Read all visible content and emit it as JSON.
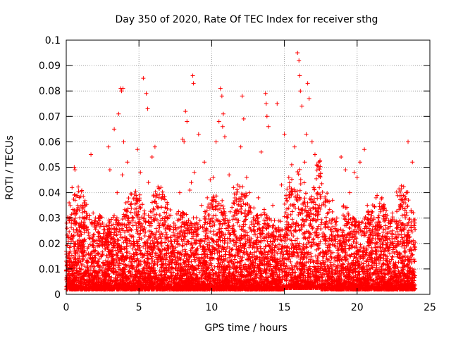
{
  "chart_data": {
    "type": "scatter",
    "title": "Day 350 of 2020, Rate Of TEC Index for receiver sthg",
    "xlabel": "GPS time / hours",
    "ylabel": "ROTI / TECUs",
    "xlim": [
      0,
      25
    ],
    "ylim": [
      0,
      0.1
    ],
    "x_ticks": [
      "0",
      "5",
      "10",
      "15",
      "20",
      "25"
    ],
    "y_ticks": [
      "0",
      "0.01",
      "0.02",
      "0.03",
      "0.04",
      "0.05",
      "0.06",
      "0.07",
      "0.08",
      "0.09",
      "0.1"
    ],
    "x_tick_values": [
      0,
      5,
      10,
      15,
      20,
      25
    ],
    "y_tick_values": [
      0,
      0.01,
      0.02,
      0.03,
      0.04,
      0.05,
      0.06,
      0.07,
      0.08,
      0.09,
      0.1
    ],
    "grid": true,
    "marker": "plus",
    "marker_color": "#ff0000",
    "series": [
      {
        "x": [
          0.05,
          0.2,
          0.35,
          0.4,
          0.55,
          0.6,
          0.75,
          1.0,
          1.3,
          1.4,
          1.7,
          1.85,
          2.2,
          2.5,
          2.7,
          2.9,
          3.0,
          3.1,
          3.3,
          3.5,
          3.6,
          3.75,
          3.8,
          3.85,
          3.9,
          3.95,
          4.1,
          4.2,
          4.4,
          4.7,
          4.9,
          5.1,
          5.3,
          5.5,
          5.6,
          5.65,
          5.9,
          6.1,
          6.3,
          6.5,
          6.9,
          7.4,
          7.8,
          8.0,
          8.1,
          8.2,
          8.3,
          8.5,
          8.6,
          8.7,
          8.75,
          8.8,
          9.1,
          9.3,
          9.5,
          9.7,
          9.9,
          10.1,
          10.3,
          10.5,
          10.6,
          10.7,
          10.75,
          10.8,
          10.9,
          11.2,
          11.5,
          11.8,
          12.0,
          12.1,
          12.2,
          12.4,
          12.6,
          12.9,
          13.2,
          13.4,
          13.7,
          13.75,
          13.8,
          13.9,
          14.2,
          14.5,
          14.8,
          15.0,
          15.3,
          15.5,
          15.7,
          15.9,
          16.0,
          16.05,
          16.1,
          16.2,
          16.4,
          16.5,
          16.6,
          16.7,
          16.9,
          17.1,
          17.4,
          17.7,
          18.0,
          18.3,
          18.6,
          18.9,
          19.2,
          19.5,
          19.8,
          20.0,
          20.2,
          20.5,
          20.7,
          21.0,
          21.3,
          21.7,
          22.0,
          22.3,
          22.7,
          23.1,
          23.5,
          23.8,
          23.9
        ],
        "y": [
          0.026,
          0.036,
          0.028,
          0.042,
          0.05,
          0.049,
          0.021,
          0.018,
          0.035,
          0.025,
          0.055,
          0.032,
          0.03,
          0.028,
          0.022,
          0.058,
          0.049,
          0.027,
          0.065,
          0.04,
          0.071,
          0.081,
          0.08,
          0.047,
          0.081,
          0.06,
          0.036,
          0.052,
          0.028,
          0.032,
          0.057,
          0.048,
          0.085,
          0.079,
          0.073,
          0.044,
          0.054,
          0.058,
          0.034,
          0.029,
          0.032,
          0.028,
          0.04,
          0.061,
          0.06,
          0.072,
          0.068,
          0.041,
          0.044,
          0.086,
          0.083,
          0.048,
          0.063,
          0.035,
          0.052,
          0.038,
          0.045,
          0.046,
          0.06,
          0.068,
          0.081,
          0.078,
          0.066,
          0.071,
          0.062,
          0.047,
          0.042,
          0.043,
          0.058,
          0.078,
          0.069,
          0.046,
          0.04,
          0.034,
          0.038,
          0.056,
          0.079,
          0.075,
          0.07,
          0.066,
          0.035,
          0.075,
          0.043,
          0.063,
          0.046,
          0.051,
          0.058,
          0.095,
          0.092,
          0.086,
          0.08,
          0.074,
          0.052,
          0.063,
          0.083,
          0.077,
          0.06,
          0.055,
          0.042,
          0.036,
          0.028,
          0.037,
          0.03,
          0.054,
          0.049,
          0.04,
          0.048,
          0.046,
          0.052,
          0.057,
          0.035,
          0.032,
          0.038,
          0.038,
          0.033,
          0.028,
          0.026,
          0.031,
          0.06,
          0.052,
          0.027
        ]
      }
    ]
  }
}
